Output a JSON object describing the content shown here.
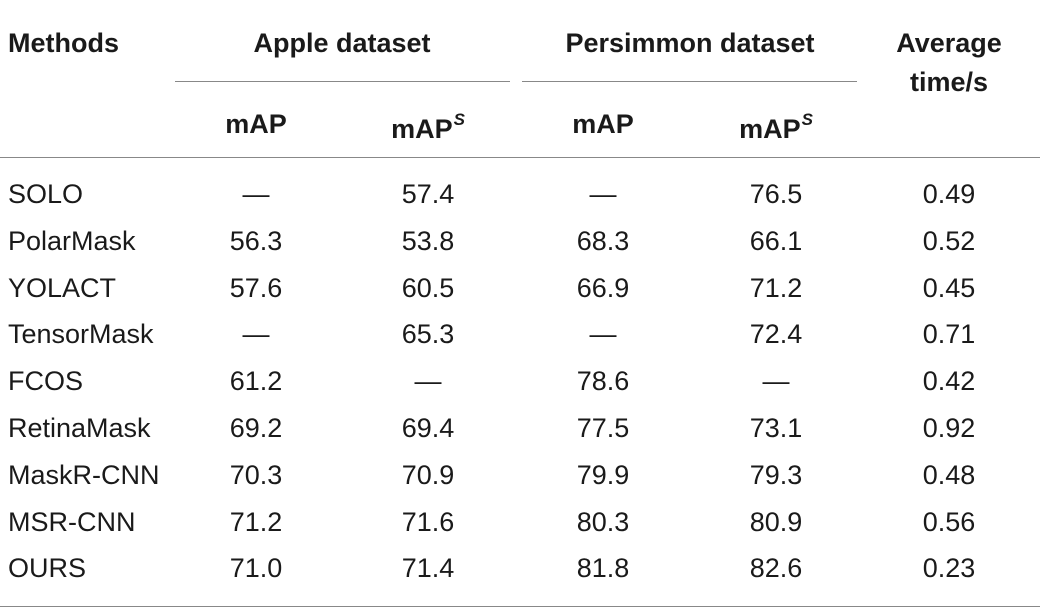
{
  "headers": {
    "methods": "Methods",
    "group1": "Apple dataset",
    "group2": "Persimmon dataset",
    "avg_line1": "Average",
    "avg_line2": "time/s",
    "map": "mAP",
    "map_s_base": "mAP",
    "map_s_sup": "S"
  },
  "rows": [
    {
      "method": "SOLO",
      "apple_map": "—",
      "apple_maps": "57.4",
      "pers_map": "—",
      "pers_maps": "76.5",
      "time": "0.49"
    },
    {
      "method": "PolarMask",
      "apple_map": "56.3",
      "apple_maps": "53.8",
      "pers_map": "68.3",
      "pers_maps": "66.1",
      "time": "0.52"
    },
    {
      "method": "YOLACT",
      "apple_map": "57.6",
      "apple_maps": "60.5",
      "pers_map": "66.9",
      "pers_maps": "71.2",
      "time": "0.45"
    },
    {
      "method": "TensorMask",
      "apple_map": "—",
      "apple_maps": "65.3",
      "pers_map": "—",
      "pers_maps": "72.4",
      "time": "0.71"
    },
    {
      "method": "FCOS",
      "apple_map": "61.2",
      "apple_maps": "—",
      "pers_map": "78.6",
      "pers_maps": "—",
      "time": "0.42"
    },
    {
      "method": "RetinaMask",
      "apple_map": "69.2",
      "apple_maps": "69.4",
      "pers_map": "77.5",
      "pers_maps": "73.1",
      "time": "0.92"
    },
    {
      "method": "MaskR-CNN",
      "apple_map": "70.3",
      "apple_maps": "70.9",
      "pers_map": "79.9",
      "pers_maps": "79.3",
      "time": "0.48"
    },
    {
      "method": "MSR-CNN",
      "apple_map": "71.2",
      "apple_maps": "71.6",
      "pers_map": "80.3",
      "pers_maps": "80.9",
      "time": "0.56"
    },
    {
      "method": "OURS",
      "apple_map": "71.0",
      "apple_maps": "71.4",
      "pers_map": "81.8",
      "pers_maps": "82.6",
      "time": "0.23"
    }
  ]
}
